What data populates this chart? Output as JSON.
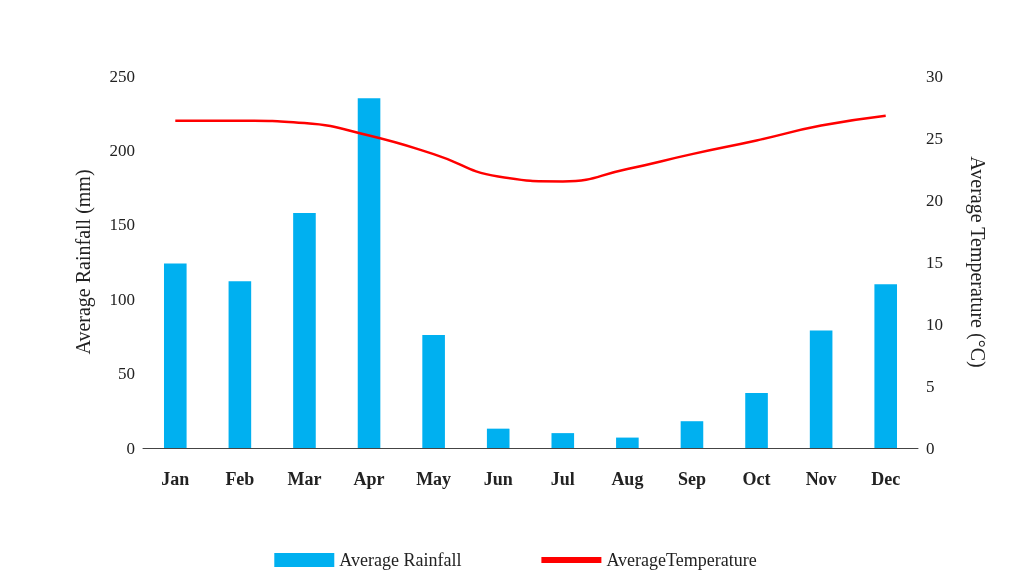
{
  "chart_data": {
    "type": "bar",
    "categories": [
      "Jan",
      "Feb",
      "Mar",
      "Apr",
      "May",
      "Jun",
      "Jul",
      "Aug",
      "Sep",
      "Oct",
      "Nov",
      "Dec"
    ],
    "series": [
      {
        "name": "Average Rainfall",
        "color": "#00b0f0",
        "values": [
          124,
          112,
          158,
          235,
          76,
          13,
          10,
          7,
          18,
          37,
          79,
          110
        ]
      },
      {
        "name": "AverageTemperature",
        "type": "line",
        "axis": "y2",
        "color": "#ff0000",
        "marker": "none",
        "values": [
          26.4,
          26.4,
          26.2,
          25.2,
          23.7,
          21.9,
          21.5,
          22.5,
          23.7,
          24.8,
          26,
          26.8
        ]
      }
    ],
    "ylabel": "Average Rainfall (mm)",
    "y2label": "Average Temperature (°C)",
    "ylim": [
      0,
      250
    ],
    "yticks": [
      0,
      50,
      100,
      150,
      200,
      250
    ],
    "y2lim": [
      0,
      30
    ],
    "y2ticks": [
      0,
      5,
      10,
      15,
      20,
      25,
      30
    ],
    "grid": false,
    "legend": "bottom"
  }
}
